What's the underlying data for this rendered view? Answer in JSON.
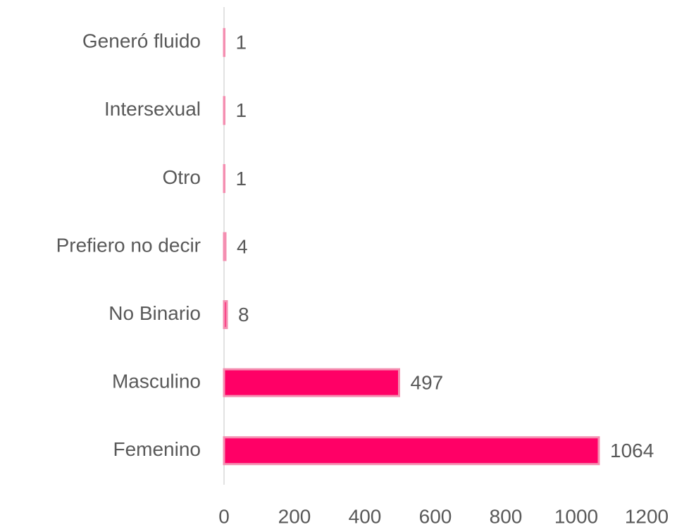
{
  "chart_data": {
    "type": "barh",
    "categories": [
      "Generó fluido",
      "Intersexual",
      "Otro",
      "Prefiero no decir",
      "No Binario",
      "Masculino",
      "Femenino"
    ],
    "values": [
      1,
      1,
      1,
      4,
      8,
      497,
      1064
    ],
    "color": "#ff0066",
    "edge_color": "#f48fb1",
    "xlim": [
      0,
      1200
    ],
    "xticks": [
      0,
      200,
      400,
      600,
      800,
      1000,
      1200
    ],
    "grid": false
  }
}
